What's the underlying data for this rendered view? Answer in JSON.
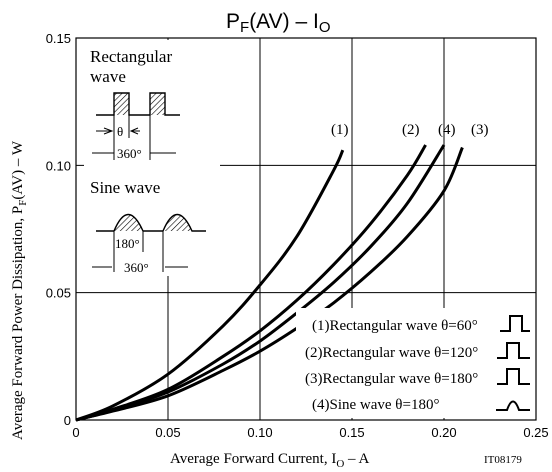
{
  "chart_data": {
    "type": "line",
    "title_main": "P",
    "title_sub": "F",
    "title_rest": "(AV)  –  I",
    "title_sub2": "O",
    "xlabel_pre": "Average Forward Current, I",
    "xlabel_sub": "O",
    "xlabel_post": "  –  A",
    "ylabel_pre": "Average Forward Power Dissipation, P",
    "ylabel_sub": "F",
    "ylabel_post": "(AV)  –  W",
    "code": "IT08179",
    "xlim": [
      0,
      0.25
    ],
    "ylim": [
      0,
      0.15
    ],
    "grid": true,
    "x_ticks": [
      {
        "value": 0,
        "label": "0"
      },
      {
        "value": 0.05,
        "label": "0.05"
      },
      {
        "value": 0.1,
        "label": "0.10"
      },
      {
        "value": 0.15,
        "label": "0.15"
      },
      {
        "value": 0.2,
        "label": "0.20"
      },
      {
        "value": 0.25,
        "label": "0.25"
      }
    ],
    "y_ticks": [
      {
        "value": 0,
        "label": "0"
      },
      {
        "value": 0.05,
        "label": "0.05"
      },
      {
        "value": 0.1,
        "label": "0.10"
      },
      {
        "value": 0.15,
        "label": "0.15"
      }
    ],
    "series": [
      {
        "name": "(1)",
        "x": [
          0,
          0.02,
          0.05,
          0.08,
          0.1,
          0.12,
          0.14,
          0.145
        ],
        "y": [
          0,
          0.0055,
          0.018,
          0.037,
          0.053,
          0.072,
          0.098,
          0.106
        ]
      },
      {
        "name": "(2)",
        "x": [
          0,
          0.02,
          0.05,
          0.08,
          0.1,
          0.12,
          0.14,
          0.16,
          0.18,
          0.19
        ],
        "y": [
          0,
          0.0042,
          0.012,
          0.025,
          0.035,
          0.047,
          0.061,
          0.077,
          0.096,
          0.108
        ]
      },
      {
        "name": "(4)",
        "x": [
          0,
          0.02,
          0.05,
          0.08,
          0.1,
          0.12,
          0.14,
          0.16,
          0.18,
          0.2
        ],
        "y": [
          0,
          0.0038,
          0.011,
          0.022,
          0.031,
          0.042,
          0.054,
          0.068,
          0.085,
          0.108
        ]
      },
      {
        "name": "(3)",
        "x": [
          0,
          0.02,
          0.05,
          0.08,
          0.1,
          0.12,
          0.14,
          0.16,
          0.18,
          0.2,
          0.21
        ],
        "y": [
          0,
          0.0035,
          0.0095,
          0.0195,
          0.027,
          0.036,
          0.046,
          0.058,
          0.072,
          0.09,
          0.107
        ]
      }
    ],
    "legend": [
      {
        "text": "(1)Rectangular wave θ=60°",
        "icon": "rect-pulse-icon"
      },
      {
        "text": "(2)Rectangular wave θ=120°",
        "icon": "rect-pulse-icon"
      },
      {
        "text": "(3)Rectangular wave θ=180°",
        "icon": "rect-pulse-icon"
      },
      {
        "text": "(4)Sine wave θ=180°",
        "icon": "sine-half-icon"
      }
    ],
    "inset": {
      "rect_title_1": "Rectangular",
      "rect_title_2": "wave",
      "theta": "θ",
      "deg360_a": "360°",
      "sine_title": "Sine wave",
      "deg180": "180°",
      "deg360_b": "360°"
    }
  }
}
